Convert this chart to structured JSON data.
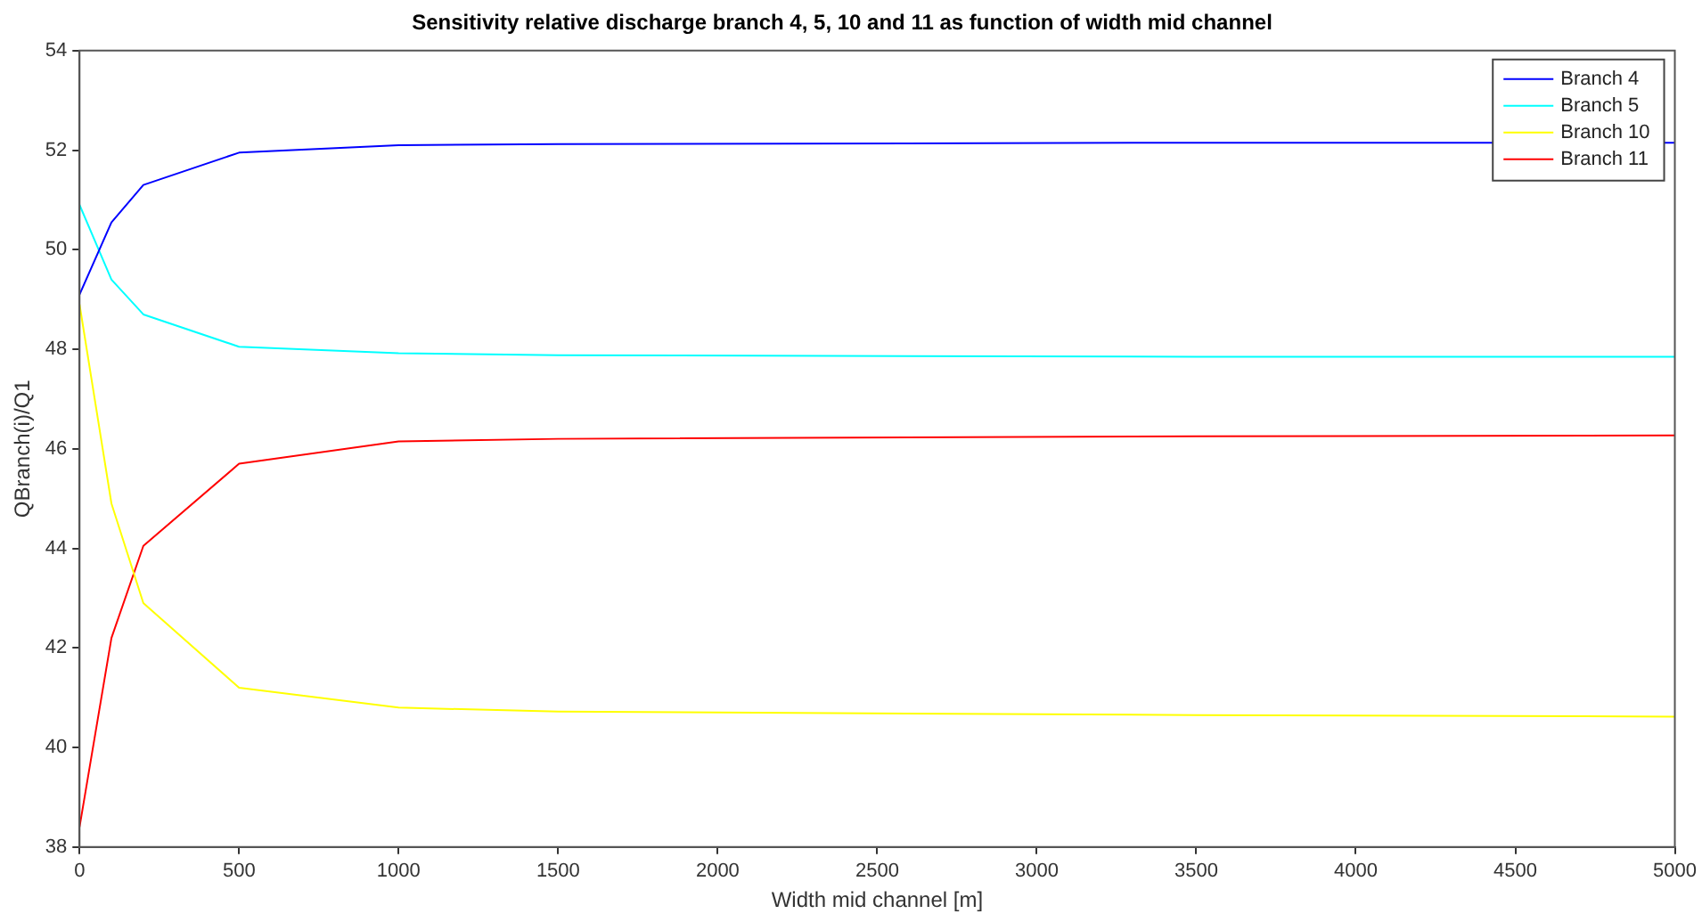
{
  "chart_data": {
    "type": "line",
    "title": "Sensitivity relative discharge branch 4, 5, 10 and 11 as function of width mid channel",
    "xlabel": "Width mid channel [m]",
    "ylabel": "QBranch(i)/Q1",
    "x": [
      0,
      100,
      200,
      500,
      1000,
      1500,
      3500,
      5000
    ],
    "series": [
      {
        "name": "Branch 4",
        "color": "#0000ff",
        "values": [
          49.1,
          50.55,
          51.3,
          51.95,
          52.1,
          52.12,
          52.15,
          52.15
        ]
      },
      {
        "name": "Branch 5",
        "color": "#00ffff",
        "values": [
          50.9,
          49.4,
          48.7,
          48.05,
          47.92,
          47.88,
          47.85,
          47.85
        ]
      },
      {
        "name": "Branch 10",
        "color": "#ffff00",
        "values": [
          48.9,
          44.9,
          42.9,
          41.2,
          40.8,
          40.72,
          40.65,
          40.62
        ]
      },
      {
        "name": "Branch 11",
        "color": "#ff0000",
        "values": [
          38.4,
          42.2,
          44.05,
          45.7,
          46.15,
          46.2,
          46.25,
          46.27
        ]
      }
    ],
    "xlim": [
      0,
      5000
    ],
    "xticks": [
      0,
      500,
      1000,
      1500,
      2000,
      2500,
      3000,
      3500,
      4000,
      4500,
      5000
    ],
    "ylim": [
      38,
      54
    ],
    "yticks": [
      38,
      40,
      42,
      44,
      46,
      48,
      50,
      52,
      54
    ],
    "grid": false,
    "legend": "top right",
    "marker": "none",
    "line_style": "solid"
  }
}
